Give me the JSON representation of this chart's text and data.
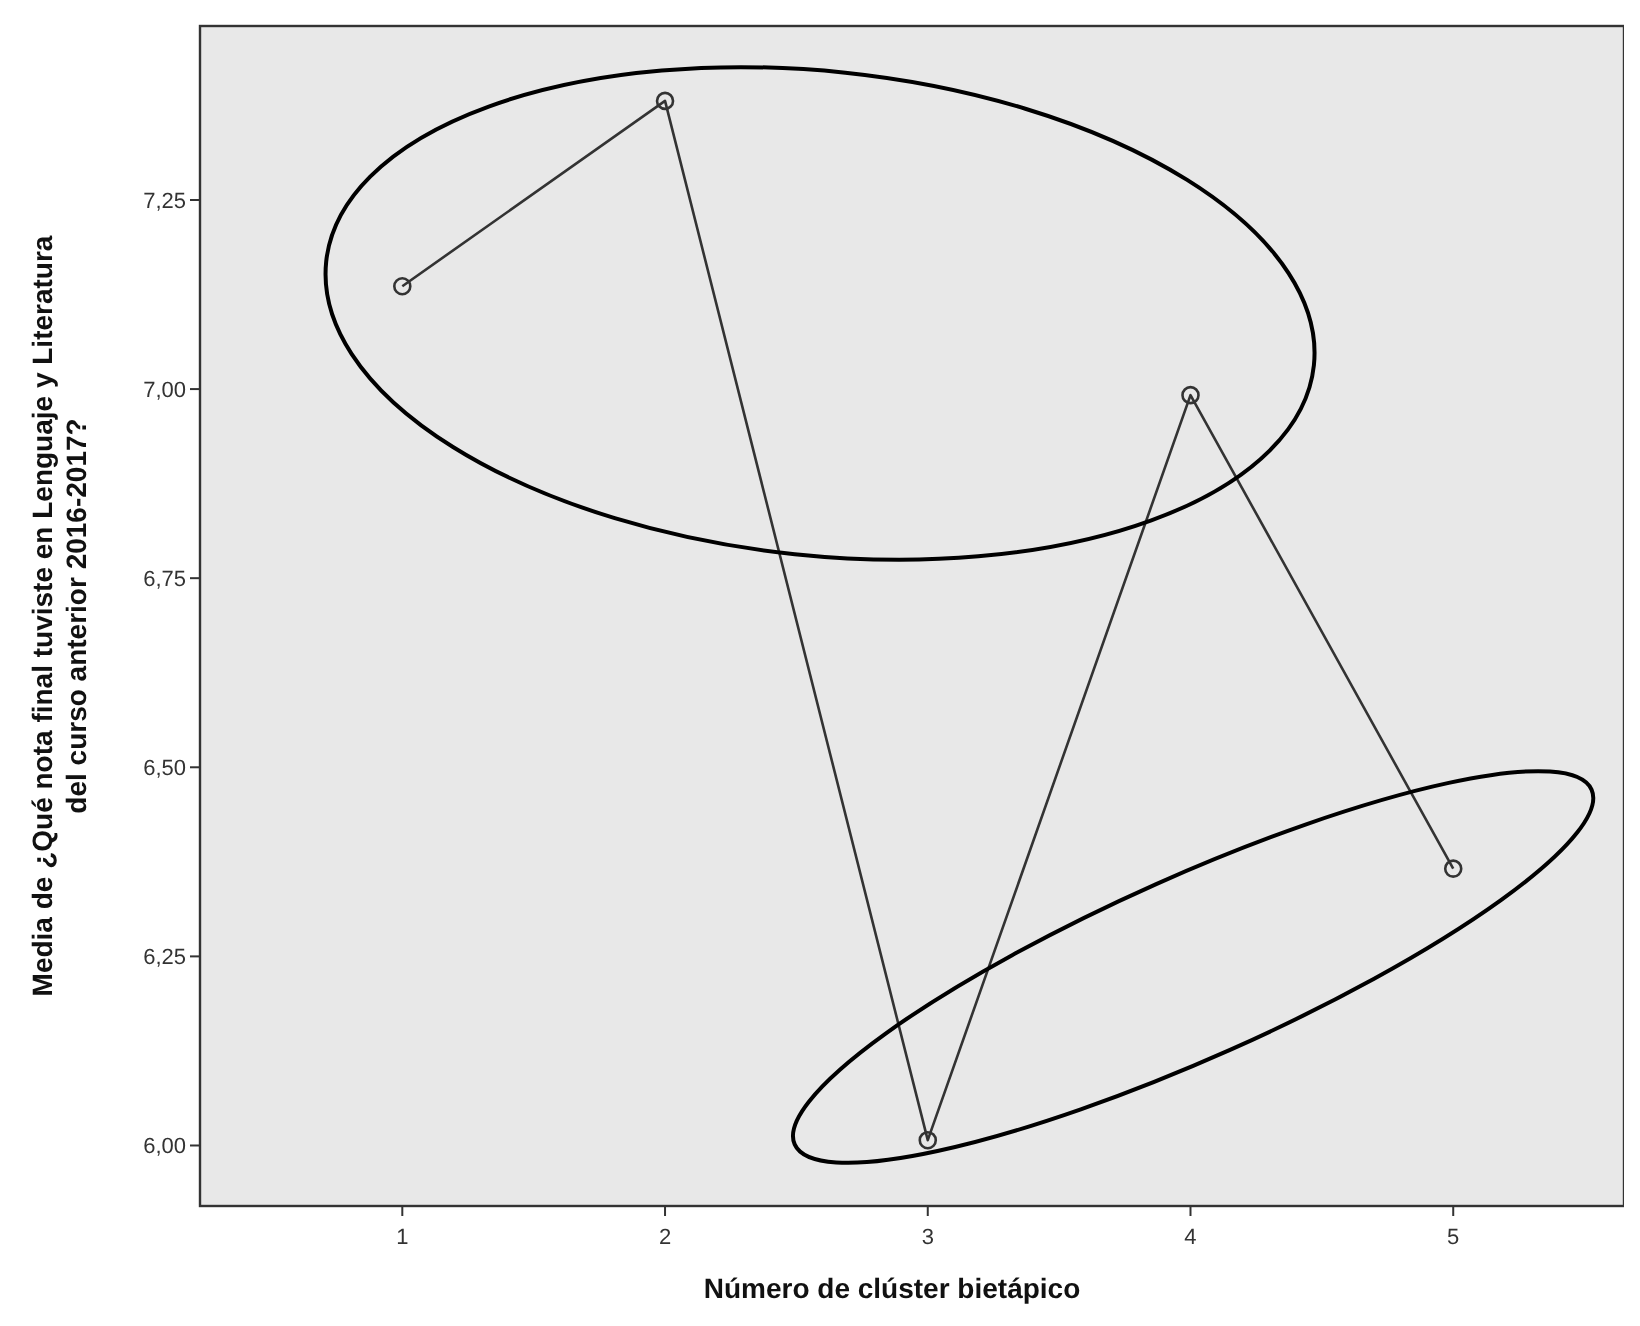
{
  "chart_data": {
    "type": "line",
    "xlabel": "Número de clúster bietápico",
    "ylabel": "Media de ¿Qué nota final tuviste en Lenguaje y Literatura\ndel curso anterior 2016-2017?",
    "x": [
      1,
      2,
      3,
      4,
      5
    ],
    "series": [
      {
        "color": "#333333",
        "values": [
          7.136,
          7.381,
          6.007,
          6.992,
          6.366
        ]
      }
    ],
    "xlim": [
      0.23,
      5.65
    ],
    "xticks": [
      1,
      2,
      3,
      4,
      5
    ],
    "ylim": [
      5.92,
      7.48
    ],
    "yticks": [
      {
        "value": 6,
        "label": "6,00"
      },
      {
        "value": 6.25,
        "label": "6,25"
      },
      {
        "value": 6.5,
        "label": "6,50"
      },
      {
        "value": 6.75,
        "label": "6,75"
      },
      {
        "value": 7,
        "label": "7,00"
      },
      {
        "value": 7.25,
        "label": "7,25"
      }
    ],
    "grid": false,
    "marker": "circle",
    "line_style": "solid"
  }
}
